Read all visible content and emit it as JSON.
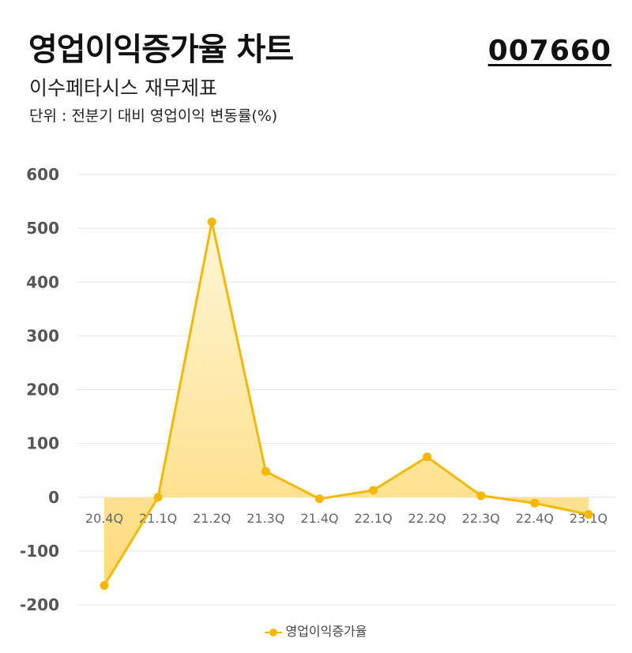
{
  "header": {
    "title": "영업이익증가율 차트",
    "code": "007660",
    "subtitle": "이수페타시스 재무제표",
    "unit": "단위 : 전분기 대비 영업이익 변동률(%)"
  },
  "colors": {
    "line": "#F5B800",
    "fill_top": "#FFF6D6",
    "fill_bottom": "#FDDB7A",
    "grid": "#E4E4E4",
    "axis_text": "#555555",
    "category_text": "#666666"
  },
  "chart_data": {
    "type": "area",
    "categories": [
      "20.4Q",
      "21.1Q",
      "21.2Q",
      "21.3Q",
      "21.4Q",
      "22.1Q",
      "22.2Q",
      "22.3Q",
      "22.4Q",
      "23.1Q"
    ],
    "series": [
      {
        "name": "영업이익증가율",
        "values": [
          -164,
          0,
          512,
          48,
          -3,
          13,
          75,
          3,
          -11,
          -32
        ]
      }
    ],
    "yticks": [
      "600",
      "500",
      "400",
      "300",
      "200",
      "100",
      "0",
      "-100",
      "-200"
    ],
    "ylim": [
      -200,
      600
    ],
    "grid": true,
    "legend": "bottom"
  }
}
